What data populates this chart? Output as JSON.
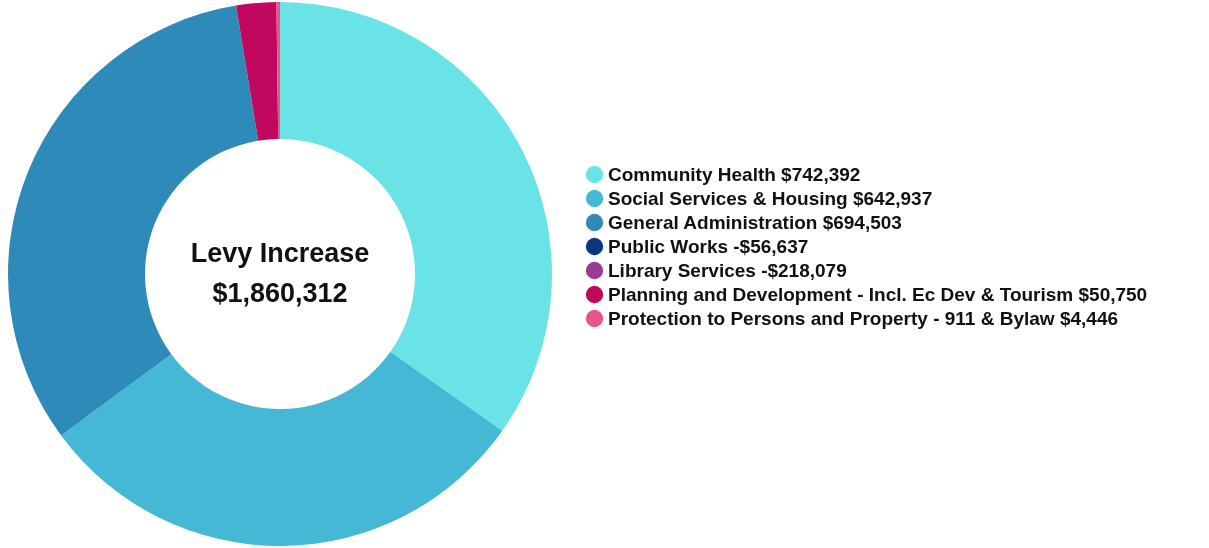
{
  "chart_data": {
    "type": "donut",
    "categories": [
      "Community Health",
      "Social Services & Housing",
      "General Administration",
      "Public Works",
      "Library Services",
      "Planning and Development - Incl. Ec Dev & Tourism",
      "Protection to Persons and Property - 911 & Bylaw"
    ],
    "value_labels": [
      "$742,392",
      "$642,937",
      "$694,503",
      "-$56,637",
      "-$218,079",
      "$50,750",
      "$4,446"
    ],
    "values": [
      742392,
      642937,
      694503,
      null,
      null,
      50750,
      4446
    ],
    "colors": [
      "#6ae3e6",
      "#45b8d6",
      "#2e8ab8",
      "#0b3580",
      "#9b3a96",
      "#c0095e",
      "#ea5585"
    ],
    "annotations": [
      "Levy Increase",
      "$1,860,312"
    ],
    "legend": "right"
  }
}
